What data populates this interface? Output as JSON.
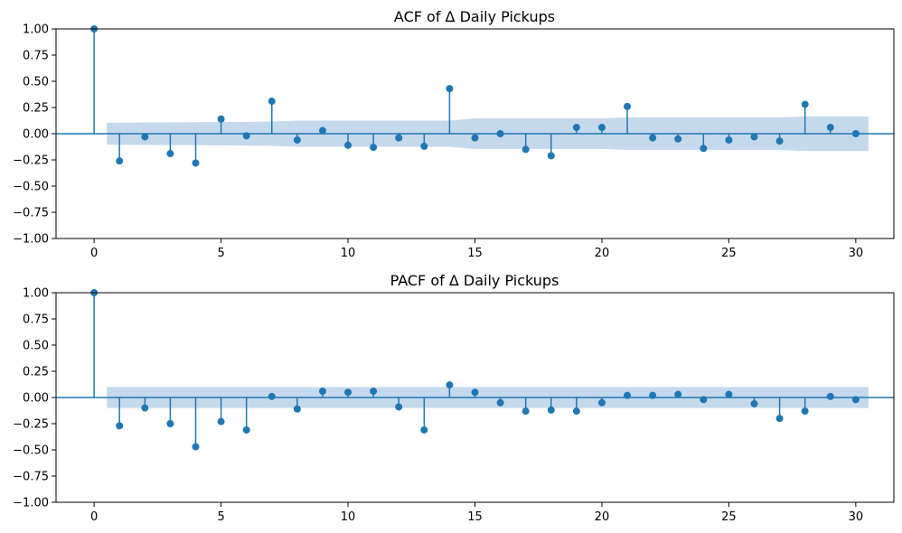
{
  "chart_data": [
    {
      "type": "stem",
      "title": "ACF of Δ Daily Pickups",
      "xlim": [
        -1.5,
        31.5
      ],
      "ylim": [
        -1.0,
        1.0
      ],
      "xticks": [
        0,
        5,
        10,
        15,
        20,
        25,
        30
      ],
      "xtick_labels": [
        "0",
        "5",
        "10",
        "15",
        "20",
        "25",
        "30"
      ],
      "yticks": [
        1.0,
        0.75,
        0.5,
        0.25,
        0.0,
        -0.25,
        -0.5,
        -0.75,
        -1.0
      ],
      "ytick_labels": [
        "1.00",
        "0.75",
        "0.50",
        "0.25",
        "0.00",
        "−0.25",
        "−0.50",
        "−0.75",
        "−1.00"
      ],
      "lags": [
        0,
        1,
        2,
        3,
        4,
        5,
        6,
        7,
        8,
        9,
        10,
        11,
        12,
        13,
        14,
        15,
        16,
        17,
        18,
        19,
        20,
        21,
        22,
        23,
        24,
        25,
        26,
        27,
        28,
        29,
        30
      ],
      "values": [
        1.0,
        -0.26,
        -0.03,
        -0.19,
        -0.28,
        0.14,
        -0.02,
        0.31,
        -0.06,
        0.03,
        -0.11,
        -0.13,
        -0.04,
        -0.12,
        0.43,
        -0.04,
        0.0,
        -0.15,
        -0.21,
        0.06,
        0.06,
        0.26,
        -0.04,
        -0.05,
        -0.14,
        -0.06,
        -0.03,
        -0.07,
        0.28,
        0.06,
        0.0
      ],
      "confidence_band": {
        "x": [
          0.5,
          7,
          8,
          14,
          15,
          20,
          21,
          27,
          28,
          30.5
        ],
        "upper": [
          0.105,
          0.115,
          0.125,
          0.125,
          0.145,
          0.145,
          0.155,
          0.155,
          0.165,
          0.165
        ]
      },
      "colors": {
        "stem": "#1f77b4",
        "band": "#c5d9ec",
        "baseline": "#1f77b4"
      }
    },
    {
      "type": "stem",
      "title": "PACF of Δ Daily Pickups",
      "xlim": [
        -1.5,
        31.5
      ],
      "ylim": [
        -1.0,
        1.0
      ],
      "xticks": [
        0,
        5,
        10,
        15,
        20,
        25,
        30
      ],
      "xtick_labels": [
        "0",
        "5",
        "10",
        "15",
        "20",
        "25",
        "30"
      ],
      "yticks": [
        1.0,
        0.75,
        0.5,
        0.25,
        0.0,
        -0.25,
        -0.5,
        -0.75,
        -1.0
      ],
      "ytick_labels": [
        "1.00",
        "0.75",
        "0.50",
        "0.25",
        "0.00",
        "−0.25",
        "−0.50",
        "−0.75",
        "−1.00"
      ],
      "lags": [
        0,
        1,
        2,
        3,
        4,
        5,
        6,
        7,
        8,
        9,
        10,
        11,
        12,
        13,
        14,
        15,
        16,
        17,
        18,
        19,
        20,
        21,
        22,
        23,
        24,
        25,
        26,
        27,
        28,
        29,
        30
      ],
      "values": [
        1.0,
        -0.27,
        -0.1,
        -0.25,
        -0.47,
        -0.23,
        -0.31,
        0.01,
        -0.11,
        0.06,
        0.05,
        0.06,
        -0.09,
        -0.31,
        0.12,
        0.05,
        -0.05,
        -0.13,
        -0.12,
        -0.13,
        -0.05,
        0.02,
        0.02,
        0.03,
        -0.02,
        0.03,
        -0.06,
        -0.2,
        -0.13,
        0.01,
        -0.02
      ],
      "confidence_band": {
        "x": [
          0.5,
          30.5
        ],
        "upper": [
          0.1,
          0.1
        ]
      },
      "colors": {
        "stem": "#1f77b4",
        "band": "#c5d9ec",
        "baseline": "#1f77b4"
      }
    }
  ]
}
